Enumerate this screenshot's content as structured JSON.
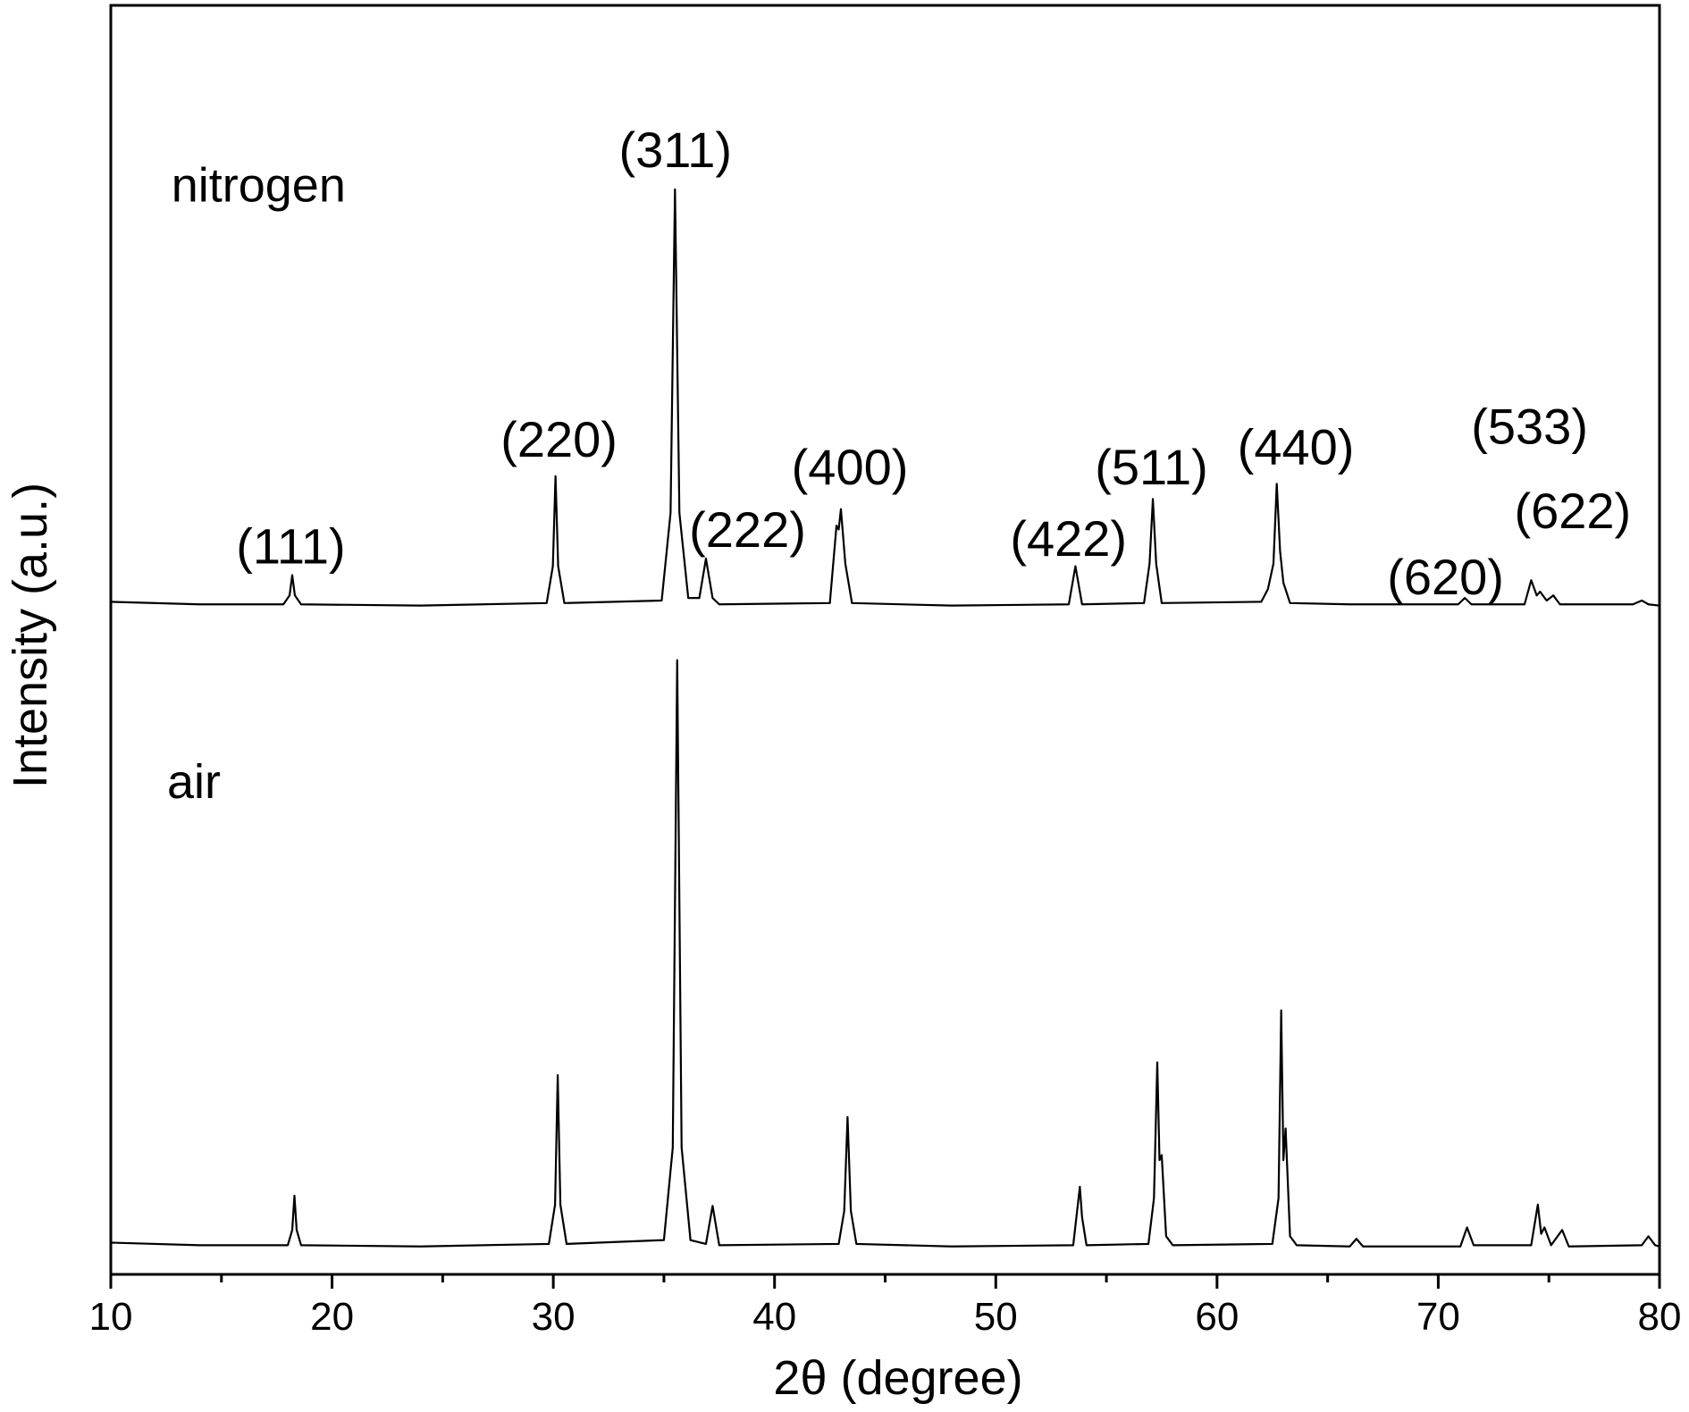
{
  "chart_data": {
    "type": "line",
    "xlabel": "2θ (degree)",
    "ylabel": "Intensity (a.u.)",
    "xlim": [
      10,
      80
    ],
    "xticks": [
      10,
      20,
      30,
      40,
      50,
      60,
      70,
      80
    ],
    "ylim": [
      0,
      100
    ],
    "annotations": [
      "(111)",
      "(220)",
      "(311)",
      "(222)",
      "(400)",
      "(422)",
      "(511)",
      "(440)",
      "(533)",
      "(620)",
      "(622)"
    ],
    "series": [
      {
        "name": "nitrogen",
        "color": "#000000",
        "x": [
          10,
          14,
          17.8,
          18.08,
          18.2,
          18.32,
          18.6,
          24,
          29.7,
          29.98,
          30.1,
          30.22,
          30.5,
          34.9,
          35.3,
          35.5,
          35.7,
          36.1,
          36.6,
          36.9,
          37.2,
          37.5,
          42.5,
          42.8,
          42.9,
          43.0,
          43.2,
          43.5,
          48,
          53.3,
          53.6,
          53.9,
          56.7,
          56.95,
          57.1,
          57.25,
          57.5,
          62.0,
          62.3,
          62.55,
          62.7,
          62.85,
          63.0,
          63.3,
          66,
          70.9,
          71.2,
          71.5,
          73.9,
          74.2,
          74.45,
          74.6,
          74.9,
          75.2,
          75.5,
          78.8,
          79.2,
          79.5,
          80
        ],
        "values": [
          53.0,
          52.8,
          52.8,
          53.5,
          55.1,
          53.5,
          52.8,
          52.7,
          52.9,
          55.8,
          62.9,
          55.8,
          52.9,
          53.1,
          60,
          85.5,
          60,
          53.3,
          53.3,
          56.4,
          53.3,
          52.8,
          52.9,
          59.0,
          58.7,
          60.3,
          56.0,
          52.9,
          52.7,
          52.8,
          55.8,
          52.8,
          52.9,
          56,
          61.1,
          56,
          52.9,
          53.0,
          54.0,
          56,
          62.3,
          57,
          54.5,
          52.9,
          52.8,
          52.8,
          53.3,
          52.8,
          52.8,
          54.7,
          53.5,
          53.8,
          53.1,
          53.5,
          52.8,
          52.8,
          53.1,
          52.8,
          52.7
        ]
      },
      {
        "name": "air",
        "color": "#000000",
        "x": [
          10,
          14,
          18.0,
          18.2,
          18.3,
          18.4,
          18.6,
          24,
          29.8,
          30.08,
          30.2,
          30.32,
          30.6,
          35.0,
          35.4,
          35.6,
          35.8,
          36.2,
          36.9,
          37.2,
          37.5,
          42.9,
          43.15,
          43.3,
          43.45,
          43.7,
          48,
          53.5,
          53.8,
          53.9,
          54.1,
          56.9,
          57.15,
          57.3,
          57.4,
          57.5,
          57.7,
          58.0,
          62.5,
          62.78,
          62.9,
          63.0,
          63.1,
          63.3,
          63.6,
          66.0,
          66.3,
          66.6,
          71.0,
          71.3,
          71.6,
          74.2,
          74.5,
          74.65,
          74.8,
          75.1,
          75.6,
          75.9,
          79.2,
          79.5,
          79.8,
          80
        ],
        "values": [
          2.5,
          2.3,
          2.3,
          3.5,
          6.2,
          3.5,
          2.3,
          2.2,
          2.4,
          5.5,
          15.7,
          5.5,
          2.4,
          2.7,
          10,
          48.4,
          10,
          2.7,
          2.4,
          5.4,
          2.3,
          2.4,
          5,
          12.4,
          5,
          2.4,
          2.2,
          2.3,
          6.9,
          4.5,
          2.3,
          2.4,
          6,
          16.7,
          9,
          9.4,
          3,
          2.3,
          2.4,
          6,
          20.8,
          9,
          11.5,
          3,
          2.3,
          2.2,
          2.8,
          2.2,
          2.2,
          3.7,
          2.3,
          2.3,
          5.5,
          3.2,
          3.7,
          2.3,
          3.5,
          2.2,
          2.3,
          3.0,
          2.3,
          2.2
        ]
      }
    ]
  }
}
